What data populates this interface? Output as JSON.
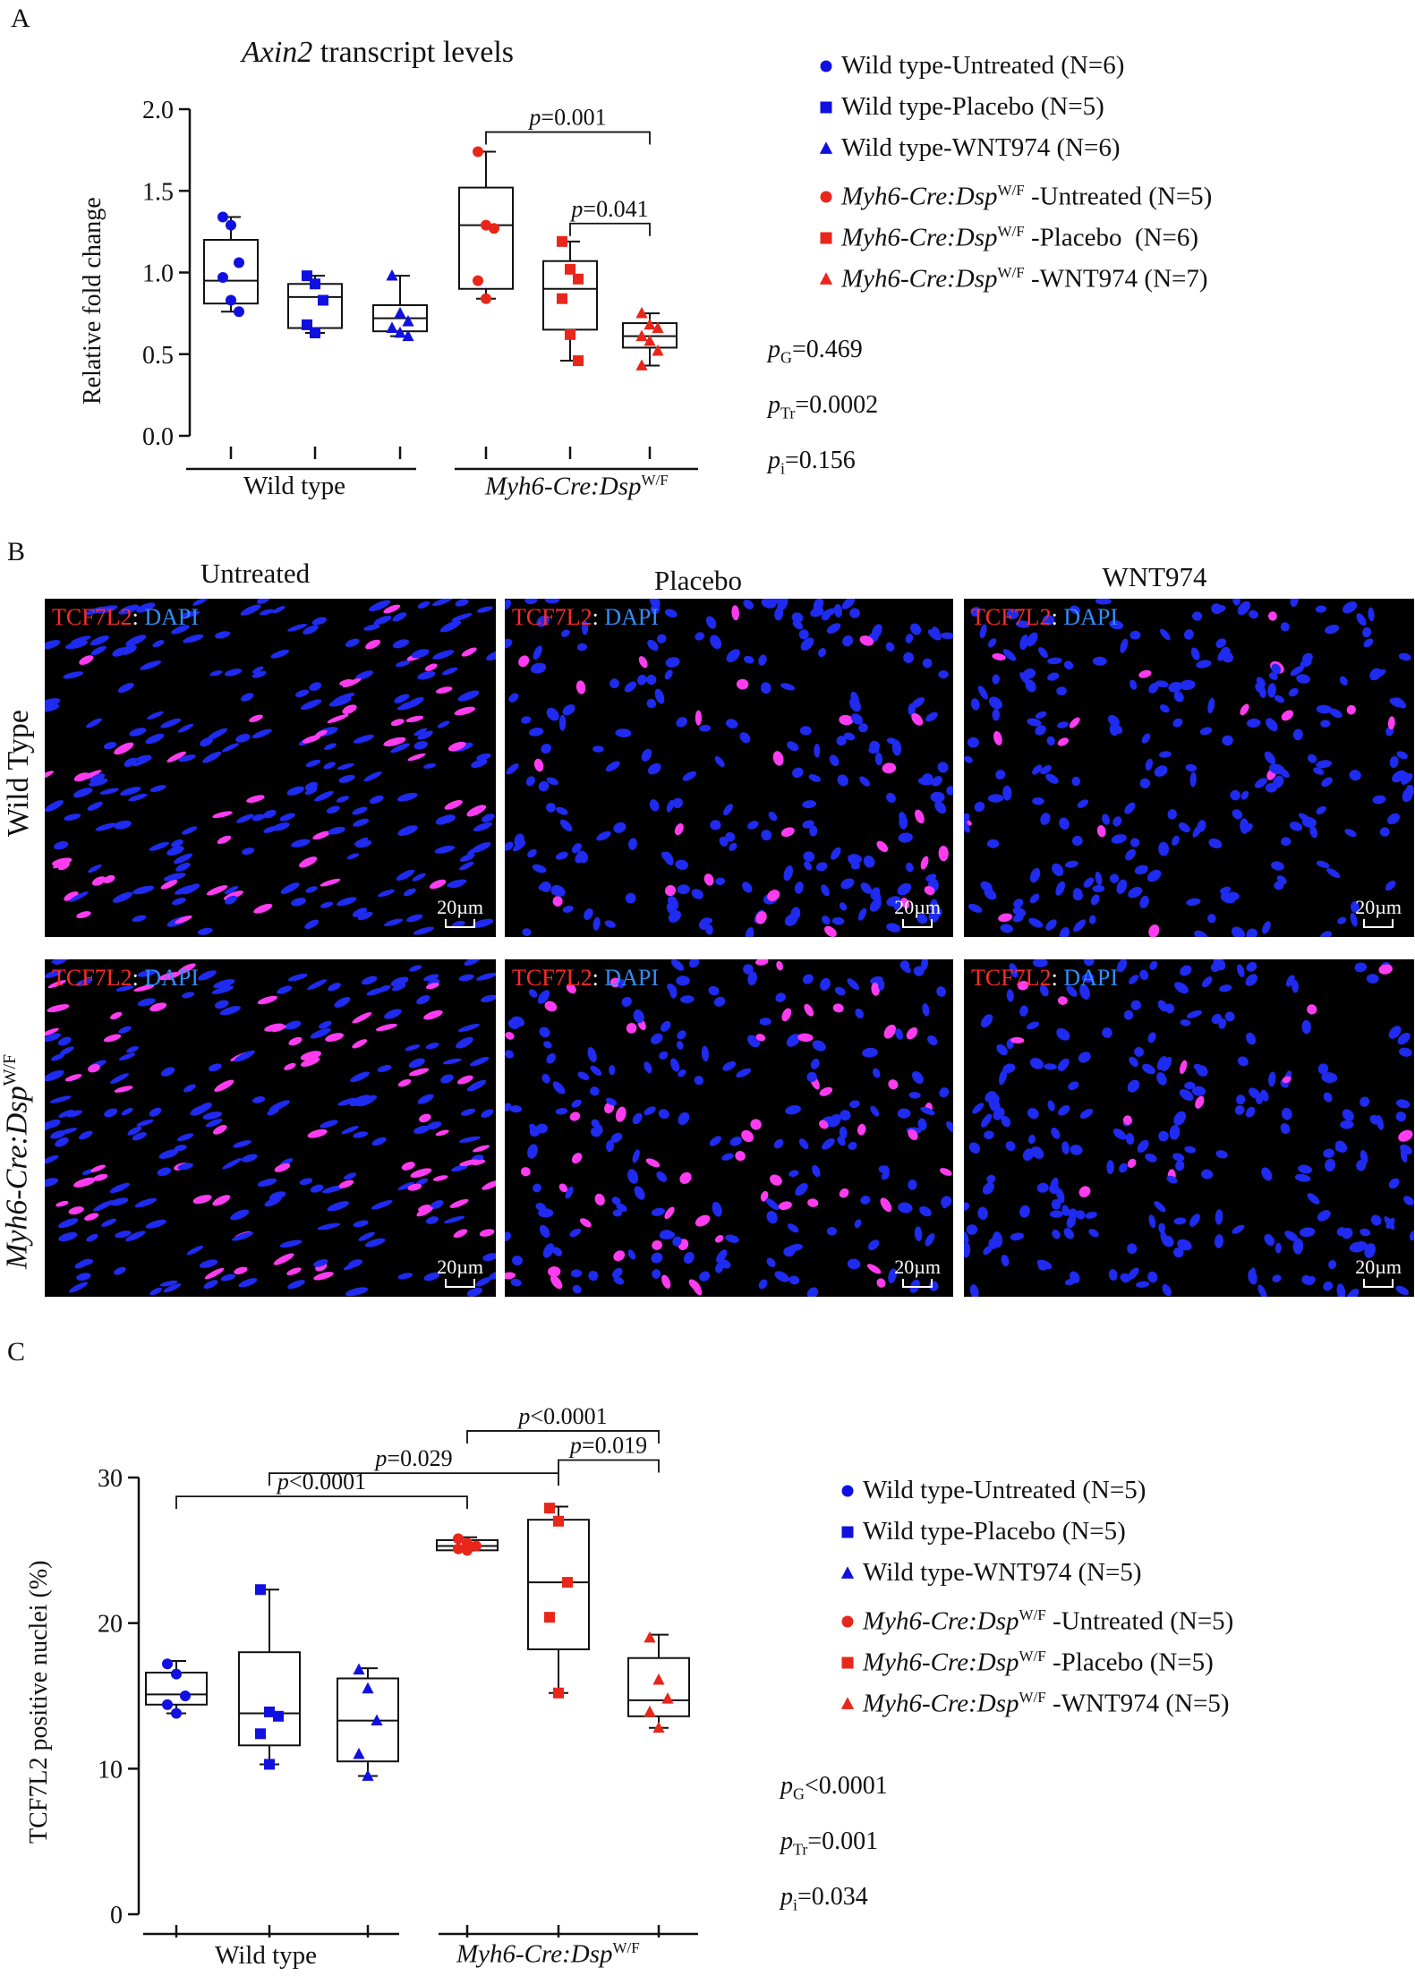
{
  "panels": {
    "a": "A",
    "b": "B",
    "c": "C"
  },
  "chartA": {
    "title_gene": "Axin2",
    "title_rest": " transcript levels",
    "ylabel": "Relative fold change",
    "yticks": [
      "0.0",
      "0.5",
      "1.0",
      "1.5",
      "2.0"
    ],
    "group1": "Wild type",
    "group2_italic": "Myh6-Cre:Dsp",
    "group2_sup": "W/F",
    "comparisons": [
      {
        "label_p": "p",
        "label_v": "=0.001"
      },
      {
        "label_p": "p",
        "label_v": "=0.041"
      }
    ],
    "legend": [
      {
        "plain": "Wild type-Untreated (N=6)"
      },
      {
        "plain": "Wild type-Placebo (N=5)"
      },
      {
        "plain": "Wild type-WNT974 (N=6)"
      },
      {
        "ital": "Myh6-Cre:Dsp",
        "sup": "W/F",
        "rest": " -Untreated (N=5)"
      },
      {
        "ital": "Myh6-Cre:Dsp",
        "sup": "W/F",
        "rest": " -Placebo  (N=6)"
      },
      {
        "ital": "Myh6-Cre:Dsp",
        "sup": "W/F",
        "rest": " -WNT974 (N=7)"
      }
    ],
    "stats": [
      {
        "p": "p",
        "sub": "G",
        "v": "=0.469"
      },
      {
        "p": "p",
        "sub": "Tr",
        "v": "=0.0002"
      },
      {
        "p": "p",
        "sub": "i",
        "v": "=0.156"
      }
    ]
  },
  "chartC": {
    "ylabel": "TCF7L2 positive nuclei (%)",
    "yticks": [
      "0",
      "10",
      "20",
      "30"
    ],
    "group1": "Wild type",
    "group2_italic": "Myh6-Cre:Dsp",
    "group2_sup": "W/F",
    "comparisons": [
      {
        "label_p": "p",
        "label_v": "<0.0001"
      },
      {
        "label_p": "p",
        "label_v": "=0.029"
      },
      {
        "label_p": "p",
        "label_v": "<0.0001"
      },
      {
        "label_p": "p",
        "label_v": "=0.019"
      }
    ],
    "legend": [
      {
        "plain": "Wild type-Untreated (N=5)"
      },
      {
        "plain": "Wild type-Placebo (N=5)"
      },
      {
        "plain": "Wild type-WNT974 (N=5)"
      },
      {
        "ital": "Myh6-Cre:Dsp",
        "sup": "W/F",
        "rest": " -Untreated (N=5)"
      },
      {
        "ital": "Myh6-Cre:Dsp",
        "sup": "W/F",
        "rest": " -Placebo (N=5)"
      },
      {
        "ital": "Myh6-Cre:Dsp",
        "sup": "W/F",
        "rest": " -WNT974 (N=5)"
      }
    ],
    "stats": [
      {
        "p": "p",
        "sub": "G",
        "v": "<0.0001"
      },
      {
        "p": "p",
        "sub": "Tr",
        "v": "=0.001"
      },
      {
        "p": "p",
        "sub": "i",
        "v": "=0.034"
      }
    ]
  },
  "micro": {
    "columns": [
      "Untreated",
      "Placebo",
      "WNT974"
    ],
    "row1": "Wild Type",
    "row2_italic": "Myh6-Cre:Dsp",
    "row2_sup": "W/F",
    "stain_red": "TCF7L2",
    "stain_sep": ": ",
    "stain_blue": "DAPI",
    "scale": "20µm"
  },
  "colors": {
    "wt": "#1010e0",
    "mut": "#e8261a",
    "ko_red": "#ee2a1c"
  },
  "chart_data": [
    {
      "type": "box",
      "title": "Axin2 transcript levels",
      "ylabel": "Relative fold change",
      "ylim": [
        0,
        2.0
      ],
      "categories": [
        "Wild type-Untreated",
        "Wild type-Placebo",
        "Wild type-WNT974",
        "Myh6-Cre:Dsp W/F-Untreated",
        "Myh6-Cre:Dsp W/F-Placebo",
        "Myh6-Cre:Dsp W/F-WNT974"
      ],
      "series": [
        {
          "min": 0.76,
          "q1": 0.81,
          "median": 0.95,
          "q3": 1.2,
          "max": 1.34,
          "points": [
            1.34,
            1.29,
            1.06,
            0.97,
            0.83,
            0.76
          ]
        },
        {
          "min": 0.63,
          "q1": 0.66,
          "median": 0.85,
          "q3": 0.93,
          "max": 0.98,
          "points": [
            0.98,
            0.93,
            0.83,
            0.68,
            0.63
          ]
        },
        {
          "min": 0.61,
          "q1": 0.64,
          "median": 0.72,
          "q3": 0.8,
          "max": 0.98,
          "points": [
            0.98,
            0.75,
            0.7,
            0.66,
            0.63,
            0.61
          ]
        },
        {
          "min": 0.84,
          "q1": 0.9,
          "median": 1.29,
          "q3": 1.52,
          "max": 1.74,
          "points": [
            1.74,
            1.29,
            1.27,
            0.95,
            0.84
          ]
        },
        {
          "min": 0.46,
          "q1": 0.65,
          "median": 0.9,
          "q3": 1.07,
          "max": 1.19,
          "points": [
            1.19,
            1.02,
            0.96,
            0.84,
            0.62,
            0.46
          ]
        },
        {
          "min": 0.43,
          "q1": 0.54,
          "median": 0.61,
          "q3": 0.69,
          "max": 0.75,
          "points": [
            0.75,
            0.68,
            0.66,
            0.61,
            0.58,
            0.52,
            0.43
          ]
        }
      ]
    },
    {
      "type": "box",
      "title": "",
      "ylabel": "TCF7L2 positive nuclei (%)",
      "ylim": [
        0,
        30
      ],
      "categories": [
        "Wild type-Untreated",
        "Wild type-Placebo",
        "Wild type-WNT974",
        "Myh6-Cre:Dsp W/F-Untreated",
        "Myh6-Cre:Dsp W/F-Placebo",
        "Myh6-Cre:Dsp W/F-WNT974"
      ],
      "series": [
        {
          "min": 13.8,
          "q1": 14.4,
          "median": 15.1,
          "q3": 16.6,
          "max": 17.4,
          "points": [
            17.2,
            16.5,
            15.0,
            14.4,
            13.8
          ]
        },
        {
          "min": 10.3,
          "q1": 11.6,
          "median": 13.8,
          "q3": 18.0,
          "max": 22.3,
          "points": [
            22.3,
            13.9,
            13.6,
            12.4,
            10.3
          ]
        },
        {
          "min": 9.5,
          "q1": 10.5,
          "median": 13.3,
          "q3": 16.2,
          "max": 16.9,
          "points": [
            16.8,
            15.5,
            13.3,
            11.0,
            9.5
          ]
        },
        {
          "min": 25.0,
          "q1": 25.0,
          "median": 25.3,
          "q3": 25.7,
          "max": 25.9,
          "points": [
            25.8,
            25.5,
            25.3,
            25.1,
            25.0
          ]
        },
        {
          "min": 15.2,
          "q1": 18.2,
          "median": 22.8,
          "q3": 27.1,
          "max": 28.0,
          "points": [
            27.9,
            27.0,
            22.8,
            20.4,
            15.2
          ]
        },
        {
          "min": 12.8,
          "q1": 13.6,
          "median": 14.7,
          "q3": 17.6,
          "max": 19.2,
          "points": [
            19.0,
            16.1,
            14.8,
            13.9,
            12.8
          ]
        }
      ]
    }
  ]
}
